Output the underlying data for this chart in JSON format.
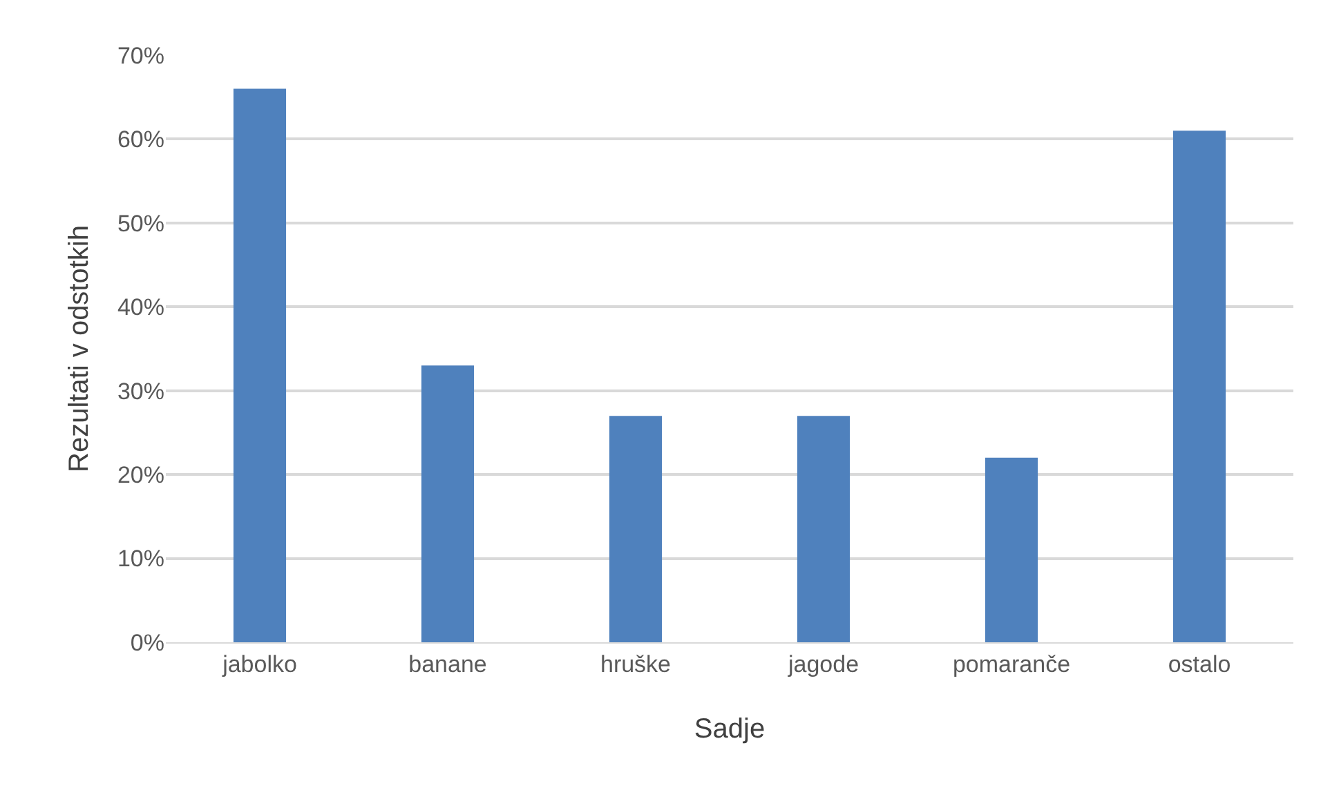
{
  "chart_data": {
    "type": "bar",
    "xlabel": "Sadje",
    "ylabel": "Rezultati v odstotkih",
    "categories": [
      "jabolko",
      "banane",
      "hruške",
      "jagode",
      "pomaranče",
      "ostalo"
    ],
    "values": [
      66,
      33,
      27,
      27,
      22,
      61
    ],
    "color": "#4f81bd",
    "ylim": [
      0,
      70
    ],
    "yticks": [
      {
        "value": 0,
        "label": "0%"
      },
      {
        "value": 10,
        "label": "10%"
      },
      {
        "value": 20,
        "label": "20%"
      },
      {
        "value": 30,
        "label": "30%"
      },
      {
        "value": 40,
        "label": "40%"
      },
      {
        "value": 50,
        "label": "50%"
      },
      {
        "value": 60,
        "label": "60%"
      },
      {
        "value": 70,
        "label": "70%"
      }
    ],
    "grid": "y",
    "legend": false
  }
}
